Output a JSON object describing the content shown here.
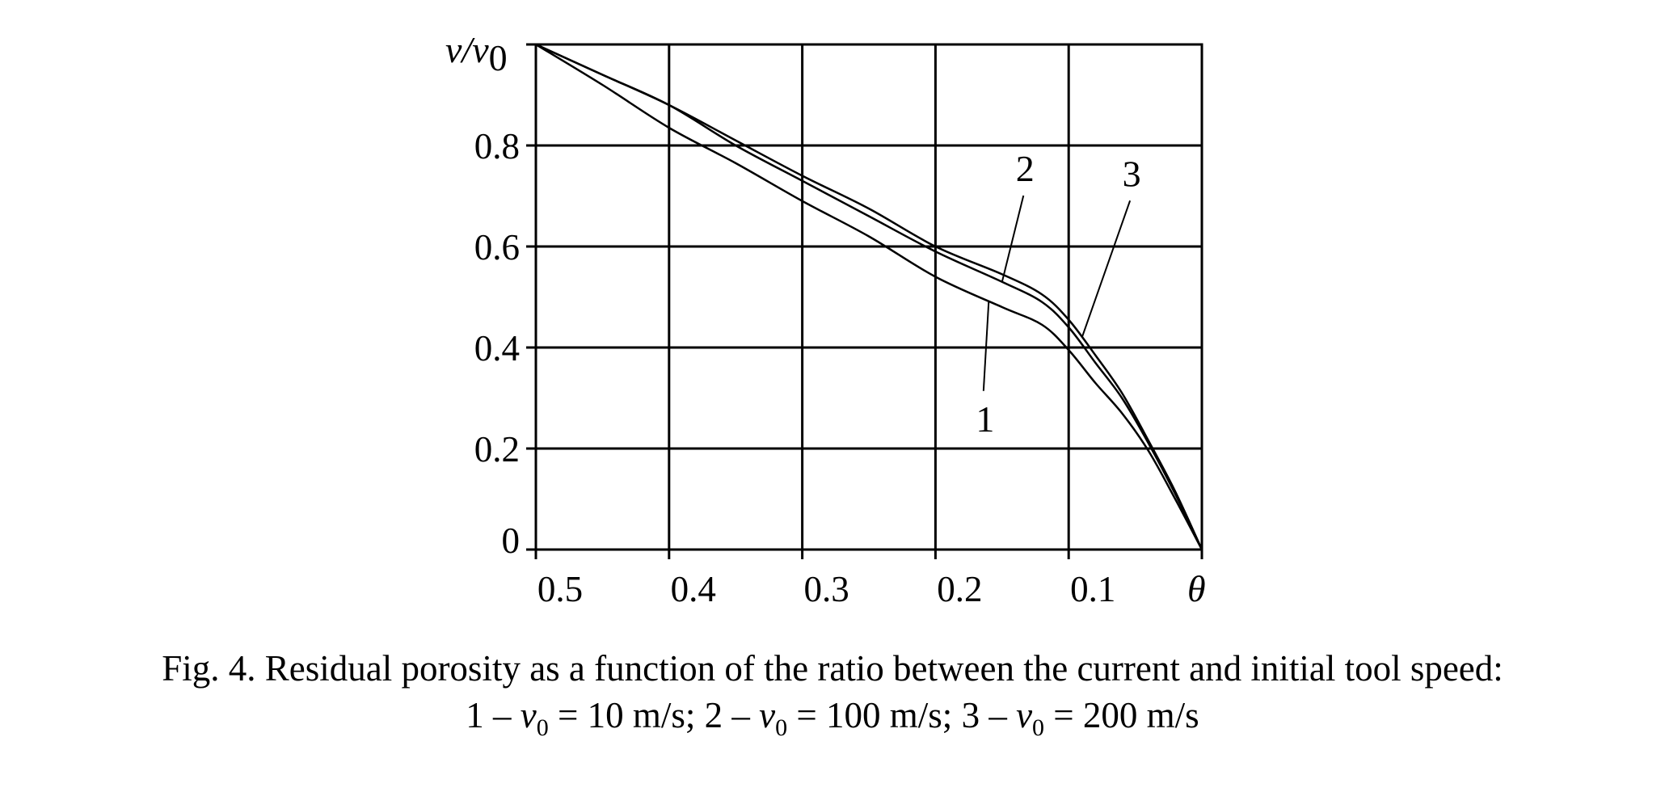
{
  "chart_data": {
    "type": "line",
    "title": "",
    "xlabel": "θ",
    "ylabel": "v/v0",
    "xlim": [
      0.5,
      0
    ],
    "ylim": [
      0,
      1
    ],
    "x_reversed": true,
    "grid": true,
    "x_ticks": [
      {
        "value": 0.5,
        "label": "0.5"
      },
      {
        "value": 0.4,
        "label": "0.4"
      },
      {
        "value": 0.3,
        "label": "0.3"
      },
      {
        "value": 0.2,
        "label": "0.2"
      },
      {
        "value": 0.1,
        "label": "0.1"
      }
    ],
    "y_ticks": [
      {
        "value": 0,
        "label": "0"
      },
      {
        "value": 0.2,
        "label": "0.2"
      },
      {
        "value": 0.4,
        "label": "0.4"
      },
      {
        "value": 0.6,
        "label": "0.6"
      },
      {
        "value": 0.8,
        "label": "0.8"
      }
    ],
    "series": [
      {
        "label": "1",
        "points": [
          [
            0.5,
            1.0
          ],
          [
            0.45,
            0.92
          ],
          [
            0.4,
            0.835
          ],
          [
            0.35,
            0.765
          ],
          [
            0.3,
            0.69
          ],
          [
            0.25,
            0.62
          ],
          [
            0.2,
            0.54
          ],
          [
            0.15,
            0.48
          ],
          [
            0.12,
            0.445
          ],
          [
            0.1,
            0.395
          ],
          [
            0.08,
            0.33
          ],
          [
            0.06,
            0.27
          ],
          [
            0.04,
            0.195
          ],
          [
            0.02,
            0.1
          ],
          [
            0.0,
            0.0
          ]
        ],
        "label_value": {
          "x": 0.17,
          "y": 0.25
        }
      },
      {
        "label": "2",
        "points": [
          [
            0.5,
            1.0
          ],
          [
            0.45,
            0.94
          ],
          [
            0.4,
            0.88
          ],
          [
            0.35,
            0.8
          ],
          [
            0.3,
            0.73
          ],
          [
            0.25,
            0.66
          ],
          [
            0.2,
            0.59
          ],
          [
            0.15,
            0.53
          ],
          [
            0.12,
            0.49
          ],
          [
            0.1,
            0.44
          ],
          [
            0.08,
            0.37
          ],
          [
            0.06,
            0.3
          ],
          [
            0.04,
            0.21
          ],
          [
            0.02,
            0.11
          ],
          [
            0.0,
            0.0
          ]
        ],
        "label_value": {
          "x": 0.14,
          "y": 0.72
        }
      },
      {
        "label": "3",
        "points": [
          [
            0.5,
            1.0
          ],
          [
            0.45,
            0.94
          ],
          [
            0.4,
            0.88
          ],
          [
            0.35,
            0.81
          ],
          [
            0.3,
            0.74
          ],
          [
            0.25,
            0.675
          ],
          [
            0.2,
            0.6
          ],
          [
            0.15,
            0.545
          ],
          [
            0.12,
            0.505
          ],
          [
            0.1,
            0.455
          ],
          [
            0.08,
            0.385
          ],
          [
            0.06,
            0.31
          ],
          [
            0.04,
            0.215
          ],
          [
            0.02,
            0.115
          ],
          [
            0.0,
            0.0
          ]
        ],
        "label_value": {
          "x": 0.06,
          "y": 0.71
        }
      }
    ]
  },
  "caption": {
    "line1": "Fig. 4. Residual porosity as a function of the ratio between the current and initial tool speed:",
    "line2": {
      "seg1_prefix": "1 – ",
      "seg1_value": " = 10 m/s; ",
      "seg2_prefix": "2 – ",
      "seg2_value": " = 100 m/s; ",
      "seg3_prefix": "3 – ",
      "seg3_value": " = 200 m/s",
      "speed_symbol": "v",
      "speed_subscript": "0"
    }
  }
}
